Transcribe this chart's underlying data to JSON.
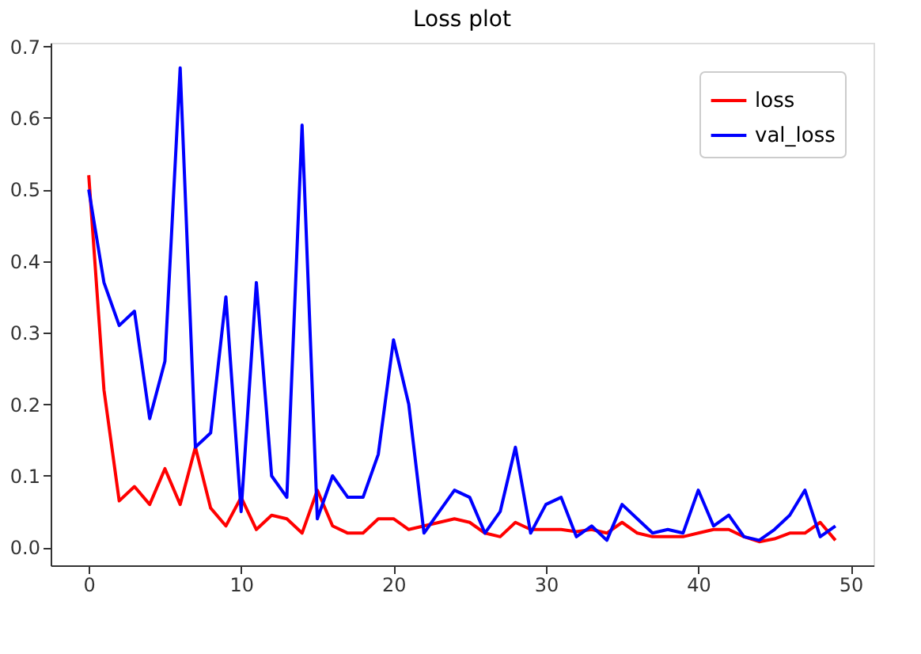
{
  "chart_data": {
    "type": "line",
    "title": "Loss plot",
    "x": [
      0,
      1,
      2,
      3,
      4,
      5,
      6,
      7,
      8,
      9,
      10,
      11,
      12,
      13,
      14,
      15,
      16,
      17,
      18,
      19,
      20,
      21,
      22,
      23,
      24,
      25,
      26,
      27,
      28,
      29,
      30,
      31,
      32,
      33,
      34,
      35,
      36,
      37,
      38,
      39,
      40,
      41,
      42,
      43,
      44,
      45,
      46,
      47,
      48,
      49
    ],
    "series": [
      {
        "name": "loss",
        "color": "#ff0000",
        "values": [
          0.52,
          0.22,
          0.065,
          0.085,
          0.06,
          0.11,
          0.06,
          0.14,
          0.055,
          0.03,
          0.07,
          0.025,
          0.045,
          0.04,
          0.02,
          0.08,
          0.03,
          0.02,
          0.02,
          0.04,
          0.04,
          0.025,
          0.03,
          0.035,
          0.04,
          0.035,
          0.02,
          0.015,
          0.035,
          0.025,
          0.025,
          0.025,
          0.022,
          0.025,
          0.02,
          0.035,
          0.02,
          0.015,
          0.015,
          0.015,
          0.02,
          0.025,
          0.025,
          0.015,
          0.008,
          0.012,
          0.02,
          0.02,
          0.035,
          0.01
        ]
      },
      {
        "name": "val_loss",
        "color": "#0000ff",
        "values": [
          0.5,
          0.37,
          0.31,
          0.33,
          0.18,
          0.26,
          0.67,
          0.14,
          0.16,
          0.35,
          0.05,
          0.37,
          0.1,
          0.07,
          0.59,
          0.04,
          0.1,
          0.07,
          0.07,
          0.13,
          0.29,
          0.2,
          0.02,
          0.05,
          0.08,
          0.07,
          0.02,
          0.05,
          0.14,
          0.02,
          0.06,
          0.07,
          0.015,
          0.03,
          0.01,
          0.06,
          0.04,
          0.02,
          0.025,
          0.02,
          0.08,
          0.03,
          0.045,
          0.015,
          0.01,
          0.025,
          0.045,
          0.08,
          0.015,
          0.03
        ]
      }
    ],
    "xlim": [
      -2.5,
      51.5
    ],
    "xticks": [
      0,
      10,
      20,
      30,
      40,
      50
    ],
    "ylim": [
      -0.025,
      0.705
    ],
    "yticks": [
      {
        "value": 0,
        "label": "0.0"
      },
      0.1,
      0.2,
      0.3,
      0.4,
      0.5,
      0.6,
      0.7
    ],
    "grid": false,
    "legend": "top right",
    "marker": "none",
    "line_style": "solid"
  }
}
